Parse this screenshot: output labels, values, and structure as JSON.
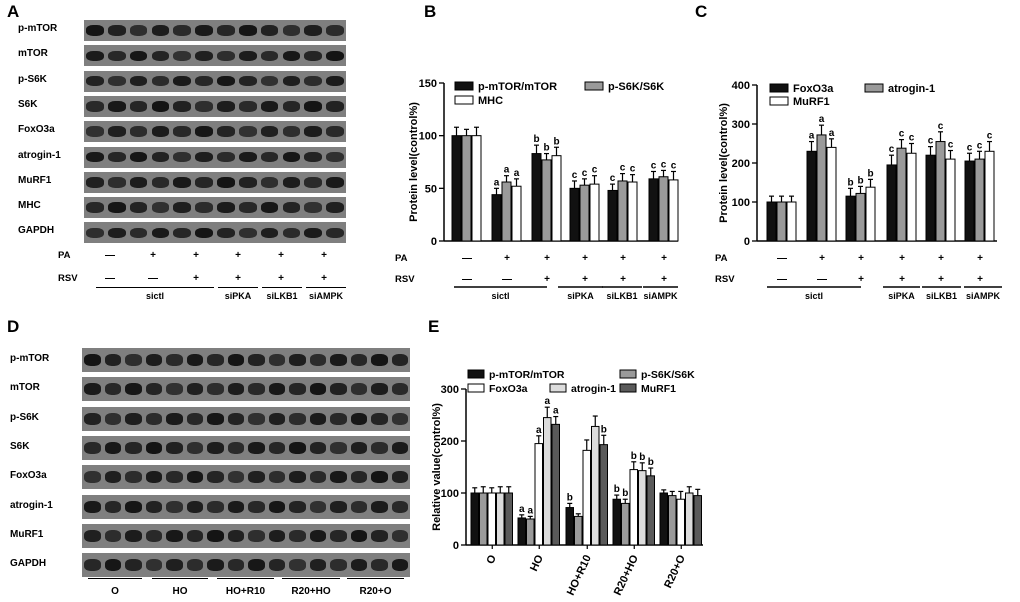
{
  "panels": {
    "A": "A",
    "B": "B",
    "C": "C",
    "D": "D",
    "E": "E"
  },
  "blot_A": {
    "labels": [
      "p-mTOR",
      "mTOR",
      "p-S6K",
      "S6K",
      "FoxO3a",
      "atrogin-1",
      "MuRF1",
      "MHC",
      "GAPDH"
    ],
    "rows": [
      {
        "label": "PA",
        "signs": [
          "—",
          "+",
          "+",
          "+",
          "+",
          "+"
        ]
      },
      {
        "label": "RSV",
        "signs": [
          "—",
          "—",
          "+",
          "+",
          "+",
          "+"
        ]
      }
    ],
    "groups": [
      "sictl",
      "siPKA",
      "siLKB1",
      "siAMPK"
    ]
  },
  "blot_D": {
    "labels": [
      "p-mTOR",
      "mTOR",
      "p-S6K",
      "S6K",
      "FoxO3a",
      "atrogin-1",
      "MuRF1",
      "GAPDH"
    ],
    "groups": [
      "O",
      "HO",
      "HO+R10",
      "R20+HO",
      "R20+O"
    ]
  },
  "chart_data": [
    {
      "panel": "B",
      "type": "bar",
      "ylabel": "Protein level(control%)",
      "ylim": [
        0,
        150
      ],
      "yticks": [
        0,
        50,
        100,
        150
      ],
      "rows": [
        {
          "label": "PA",
          "signs": [
            "—",
            "+",
            "+",
            "+",
            "+",
            "+"
          ]
        },
        {
          "label": "RSV",
          "signs": [
            "—",
            "—",
            "+",
            "+",
            "+",
            "+"
          ]
        }
      ],
      "groups": [
        "sictl",
        "siPKA",
        "siLKB1",
        "siAMPK"
      ],
      "series": [
        {
          "name": "p-mTOR/mTOR",
          "color": "#111111",
          "values": [
            100,
            44,
            83,
            50,
            48,
            59
          ],
          "errors": [
            8,
            6,
            8,
            7,
            6,
            7
          ],
          "letters": [
            "",
            "a",
            "b",
            "c",
            "c",
            "c"
          ]
        },
        {
          "name": "p-S6K/S6K",
          "color": "#9a9a9a",
          "values": [
            100,
            56,
            77,
            53,
            57,
            61
          ],
          "errors": [
            6,
            6,
            6,
            6,
            7,
            6
          ],
          "letters": [
            "",
            "a",
            "b",
            "c",
            "c",
            "c"
          ]
        },
        {
          "name": "MHC",
          "color": "#ffffff",
          "values": [
            100,
            52,
            81,
            54,
            56,
            58
          ],
          "errors": [
            8,
            7,
            8,
            8,
            7,
            8
          ],
          "letters": [
            "",
            "a",
            "b",
            "c",
            "c",
            "c"
          ]
        }
      ]
    },
    {
      "panel": "C",
      "type": "bar",
      "ylabel": "Protein level(control%)",
      "ylim": [
        0,
        400
      ],
      "yticks": [
        0,
        100,
        200,
        300,
        400
      ],
      "rows": [
        {
          "label": "PA",
          "signs": [
            "—",
            "+",
            "+",
            "+",
            "+",
            "+"
          ]
        },
        {
          "label": "RSV",
          "signs": [
            "—",
            "—",
            "+",
            "+",
            "+",
            "+"
          ]
        }
      ],
      "groups": [
        "sictl",
        "siPKA",
        "siLKB1",
        "siAMPK"
      ],
      "series": [
        {
          "name": "FoxO3a",
          "color": "#111111",
          "values": [
            100,
            230,
            115,
            195,
            220,
            205
          ],
          "errors": [
            15,
            25,
            20,
            25,
            22,
            20
          ],
          "letters": [
            "",
            "a",
            "b",
            "c",
            "c",
            "c"
          ]
        },
        {
          "name": "atrogin-1",
          "color": "#9a9a9a",
          "values": [
            100,
            272,
            122,
            238,
            255,
            210
          ],
          "errors": [
            15,
            25,
            18,
            22,
            25,
            20
          ],
          "letters": [
            "",
            "a",
            "b",
            "c",
            "c",
            "c"
          ]
        },
        {
          "name": "MuRF1",
          "color": "#ffffff",
          "values": [
            100,
            240,
            138,
            225,
            210,
            230
          ],
          "errors": [
            15,
            22,
            20,
            25,
            22,
            25
          ],
          "letters": [
            "",
            "a",
            "b",
            "c",
            "c",
            "c"
          ]
        }
      ]
    },
    {
      "panel": "E",
      "type": "bar",
      "ylabel": "Relative value(control%)",
      "ylim": [
        0,
        300
      ],
      "yticks": [
        0,
        100,
        200,
        300
      ],
      "categories": [
        "O",
        "HO",
        "HO+R10",
        "R20+HO",
        "R20+O"
      ],
      "series": [
        {
          "name": "p-mTOR/mTOR",
          "color": "#111111",
          "values": [
            100,
            52,
            72,
            88,
            100
          ],
          "errors": [
            10,
            6,
            8,
            8,
            6
          ],
          "letters": [
            "",
            "a",
            "b",
            "b",
            ""
          ]
        },
        {
          "name": "p-S6K/S6K",
          "color": "#9a9a9a",
          "values": [
            100,
            50,
            55,
            80,
            95
          ],
          "errors": [
            12,
            5,
            5,
            8,
            8
          ],
          "letters": [
            "",
            "a",
            "",
            "b",
            ""
          ]
        },
        {
          "name": "FoxO3a",
          "color": "#ffffff",
          "values": [
            100,
            195,
            182,
            145,
            88
          ],
          "errors": [
            10,
            15,
            20,
            15,
            15
          ],
          "letters": [
            "",
            "a",
            "",
            "b",
            ""
          ]
        },
        {
          "name": "atrogin-1",
          "color": "#dcdcdc",
          "values": [
            100,
            245,
            228,
            143,
            100
          ],
          "errors": [
            12,
            20,
            20,
            15,
            12
          ],
          "letters": [
            "",
            "a",
            "",
            "b",
            ""
          ]
        },
        {
          "name": "MuRF1",
          "color": "#5a5a5a",
          "values": [
            100,
            232,
            193,
            133,
            95
          ],
          "errors": [
            12,
            15,
            18,
            15,
            12
          ],
          "letters": [
            "",
            "a",
            "b",
            "b",
            ""
          ]
        }
      ]
    }
  ]
}
